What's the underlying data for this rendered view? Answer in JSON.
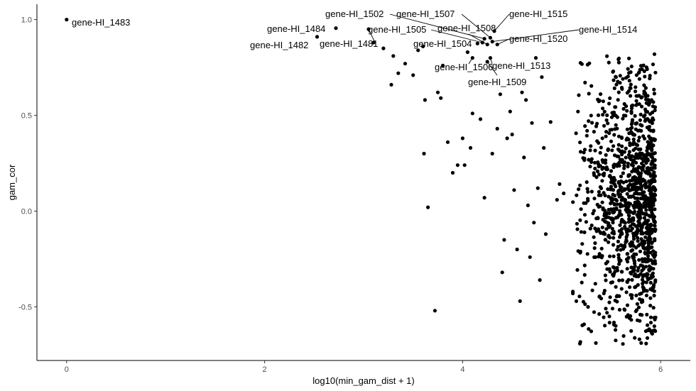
{
  "chart_data": {
    "type": "scatter",
    "title": "",
    "xlabel": "log10(min_gam_dist + 1)",
    "ylabel": "gam_cor",
    "xlim": [
      -0.3,
      6.3
    ],
    "ylim": [
      -0.78,
      1.08
    ],
    "xticks": [
      0,
      2,
      4,
      6
    ],
    "xtick_labels": [
      "0",
      "2",
      "4",
      "6"
    ],
    "yticks": [
      -0.5,
      0.0,
      0.5,
      1.0
    ],
    "ytick_labels": [
      "-0.5",
      "0.0",
      "0.5",
      "1.0"
    ],
    "grid": false,
    "point_color": "#000000",
    "labeled_points": [
      {
        "label": "gene-HI_1483",
        "x": 0.0,
        "y": 1.0
      },
      {
        "label": "gene-HI_1484",
        "x": 2.72,
        "y": 0.955
      },
      {
        "label": "gene-HI_1482",
        "x": 2.53,
        "y": 0.91
      },
      {
        "label": "gene-HI_1481",
        "x": 3.05,
        "y": 0.95
      },
      {
        "label": "gene-HI_1502",
        "x": 4.22,
        "y": 0.9
      },
      {
        "label": "gene-HI_1507",
        "x": 4.28,
        "y": 0.905
      },
      {
        "label": "gene-HI_1515",
        "x": 4.32,
        "y": 0.94
      },
      {
        "label": "gene-HI_1505",
        "x": 4.2,
        "y": 0.88
      },
      {
        "label": "gene-HI_1508",
        "x": 4.25,
        "y": 0.87
      },
      {
        "label": "gene-HI_1514",
        "x": 4.3,
        "y": 0.885
      },
      {
        "label": "gene-HI_1520",
        "x": 4.35,
        "y": 0.87
      },
      {
        "label": "gene-HI_1504",
        "x": 4.15,
        "y": 0.875
      },
      {
        "label": "gene-HI_1506",
        "x": 4.1,
        "y": 0.8
      },
      {
        "label": "gene-HI_1513",
        "x": 4.28,
        "y": 0.8
      },
      {
        "label": "gene-HI_1509",
        "x": 4.25,
        "y": 0.78
      }
    ],
    "points": [
      {
        "x": 3.1,
        "y": 0.88
      },
      {
        "x": 3.2,
        "y": 0.85
      },
      {
        "x": 3.3,
        "y": 0.81
      },
      {
        "x": 3.28,
        "y": 0.66
      },
      {
        "x": 3.35,
        "y": 0.72
      },
      {
        "x": 3.42,
        "y": 0.77
      },
      {
        "x": 3.5,
        "y": 0.71
      },
      {
        "x": 3.55,
        "y": 0.84
      },
      {
        "x": 3.6,
        "y": 0.86
      },
      {
        "x": 3.62,
        "y": 0.58
      },
      {
        "x": 3.61,
        "y": 0.3
      },
      {
        "x": 3.65,
        "y": 0.02
      },
      {
        "x": 3.72,
        "y": -0.52
      },
      {
        "x": 3.75,
        "y": 0.62
      },
      {
        "x": 3.78,
        "y": 0.59
      },
      {
        "x": 3.8,
        "y": 0.76
      },
      {
        "x": 3.85,
        "y": 0.36
      },
      {
        "x": 3.9,
        "y": 0.2
      },
      {
        "x": 3.95,
        "y": 0.24
      },
      {
        "x": 4.0,
        "y": 0.38
      },
      {
        "x": 4.02,
        "y": 0.24
      },
      {
        "x": 4.05,
        "y": 0.83
      },
      {
        "x": 4.1,
        "y": 0.51
      },
      {
        "x": 4.08,
        "y": 0.33
      },
      {
        "x": 4.18,
        "y": 0.48
      },
      {
        "x": 4.22,
        "y": 0.07
      },
      {
        "x": 4.3,
        "y": 0.3
      },
      {
        "x": 4.35,
        "y": 0.43
      },
      {
        "x": 4.38,
        "y": 0.61
      },
      {
        "x": 4.4,
        "y": -0.32
      },
      {
        "x": 4.42,
        "y": -0.15
      },
      {
        "x": 4.45,
        "y": 0.38
      },
      {
        "x": 4.48,
        "y": 0.52
      },
      {
        "x": 4.5,
        "y": 0.4
      },
      {
        "x": 4.52,
        "y": 0.11
      },
      {
        "x": 4.55,
        "y": -0.2
      },
      {
        "x": 4.58,
        "y": -0.47
      },
      {
        "x": 4.6,
        "y": 0.62
      },
      {
        "x": 4.62,
        "y": 0.28
      },
      {
        "x": 4.64,
        "y": 0.58
      },
      {
        "x": 4.66,
        "y": 0.03
      },
      {
        "x": 4.68,
        "y": -0.24
      },
      {
        "x": 4.7,
        "y": 0.46
      },
      {
        "x": 4.72,
        "y": -0.06
      },
      {
        "x": 4.74,
        "y": 0.8
      },
      {
        "x": 4.76,
        "y": 0.12
      },
      {
        "x": 4.78,
        "y": -0.36
      },
      {
        "x": 4.8,
        "y": 0.7
      },
      {
        "x": 4.82,
        "y": 0.33
      },
      {
        "x": 4.84,
        "y": -0.12
      }
    ],
    "cluster": {
      "x_min": 4.85,
      "x_max": 5.95,
      "y_min": -0.7,
      "y_max": 0.82,
      "x_mode": 5.9,
      "count": 1200,
      "seed": 1483
    }
  }
}
